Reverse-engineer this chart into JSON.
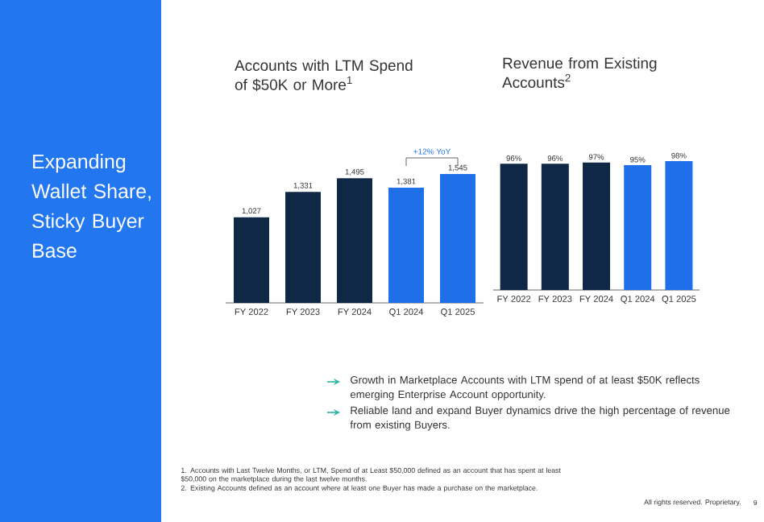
{
  "chart_data": [
    {
      "type": "other",
      "title": "Expanding Wallet Share, Sticky Buyer Base",
      "annotations": [
        "Growth in Marketplace Accounts with LTM spend of at least $50K reflects emerging Enterprise Account opportunity.",
        "Reliable land and expand Buyer dynamics drive the high percentage of revenue from existing Buyers.",
        "1. Accounts with Last Twelve Months, or LTM, Spend of at Least $50,000 defined as an account that has spent at least $50,000 on the marketplace during the last twelve months.",
        "2. Existing Accounts defined as an account where at least one Buyer has made a purchase on the marketplace.",
        "All rights reserved. Proprietary.",
        "9"
      ]
    },
    {
      "type": "bar",
      "title": "Accounts with LTM Spend of $50K or More$^{1}$",
      "categories": [
        "FY 2022",
        "FY 2023",
        "FY 2024",
        "Q1 2024",
        "Q1 2025"
      ],
      "values": [
        1027,
        1331,
        1495,
        1381,
        1545
      ],
      "colors": [
        "#0f2846",
        "#0f2846",
        "#0f2846",
        "#1f6fe8",
        "#1f6fe8"
      ],
      "value_labels": [
        "1,027",
        "1,331",
        "1,495",
        "1,381",
        "1,545"
      ],
      "annotations": [
        "+12% YoY"
      ]
    },
    {
      "type": "bar",
      "title": "Revenue from Existing Accounts$^{2}$",
      "categories": [
        "FY 2022",
        "FY 2023",
        "FY 2024",
        "Q1 2024",
        "Q1 2025"
      ],
      "values": [
        96,
        96,
        97,
        95,
        98
      ],
      "colors": [
        "#0f2846",
        "#0f2846",
        "#0f2846",
        "#1f6fe8",
        "#1f6fe8"
      ],
      "value_labels": [
        "96%",
        "96%",
        "97%",
        "95%",
        "98%"
      ]
    }
  ]
}
